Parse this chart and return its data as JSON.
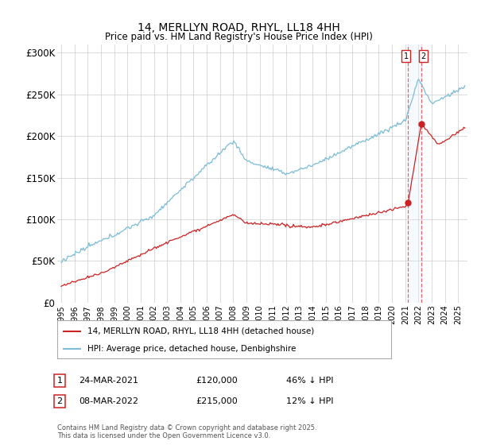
{
  "title": "14, MERLLYN ROAD, RHYL, LL18 4HH",
  "subtitle": "Price paid vs. HM Land Registry's House Price Index (HPI)",
  "ylim": [
    0,
    310000
  ],
  "yticks": [
    0,
    50000,
    100000,
    150000,
    200000,
    250000,
    300000
  ],
  "ytick_labels": [
    "£0",
    "£50K",
    "£100K",
    "£150K",
    "£200K",
    "£250K",
    "£300K"
  ],
  "hpi_color": "#7bbcd6",
  "price_color": "#cc2222",
  "dashed_line_color": "#dd4444",
  "shade_color": "#ddeeff",
  "sale1_year": 2021.21,
  "sale2_year": 2022.21,
  "sale1_price": 120000,
  "sale2_price": 215000,
  "sale1_hpi": 221000,
  "sale2_hpi": 244000,
  "sale1_date": "24-MAR-2021",
  "sale2_date": "08-MAR-2022",
  "sale1_note": "46% ↓ HPI",
  "sale2_note": "12% ↓ HPI",
  "legend_label1": "14, MERLLYN ROAD, RHYL, LL18 4HH (detached house)",
  "legend_label2": "HPI: Average price, detached house, Denbighshire",
  "footer": "Contains HM Land Registry data © Crown copyright and database right 2025.\nThis data is licensed under the Open Government Licence v3.0.",
  "background_color": "#ffffff",
  "grid_color": "#cccccc"
}
